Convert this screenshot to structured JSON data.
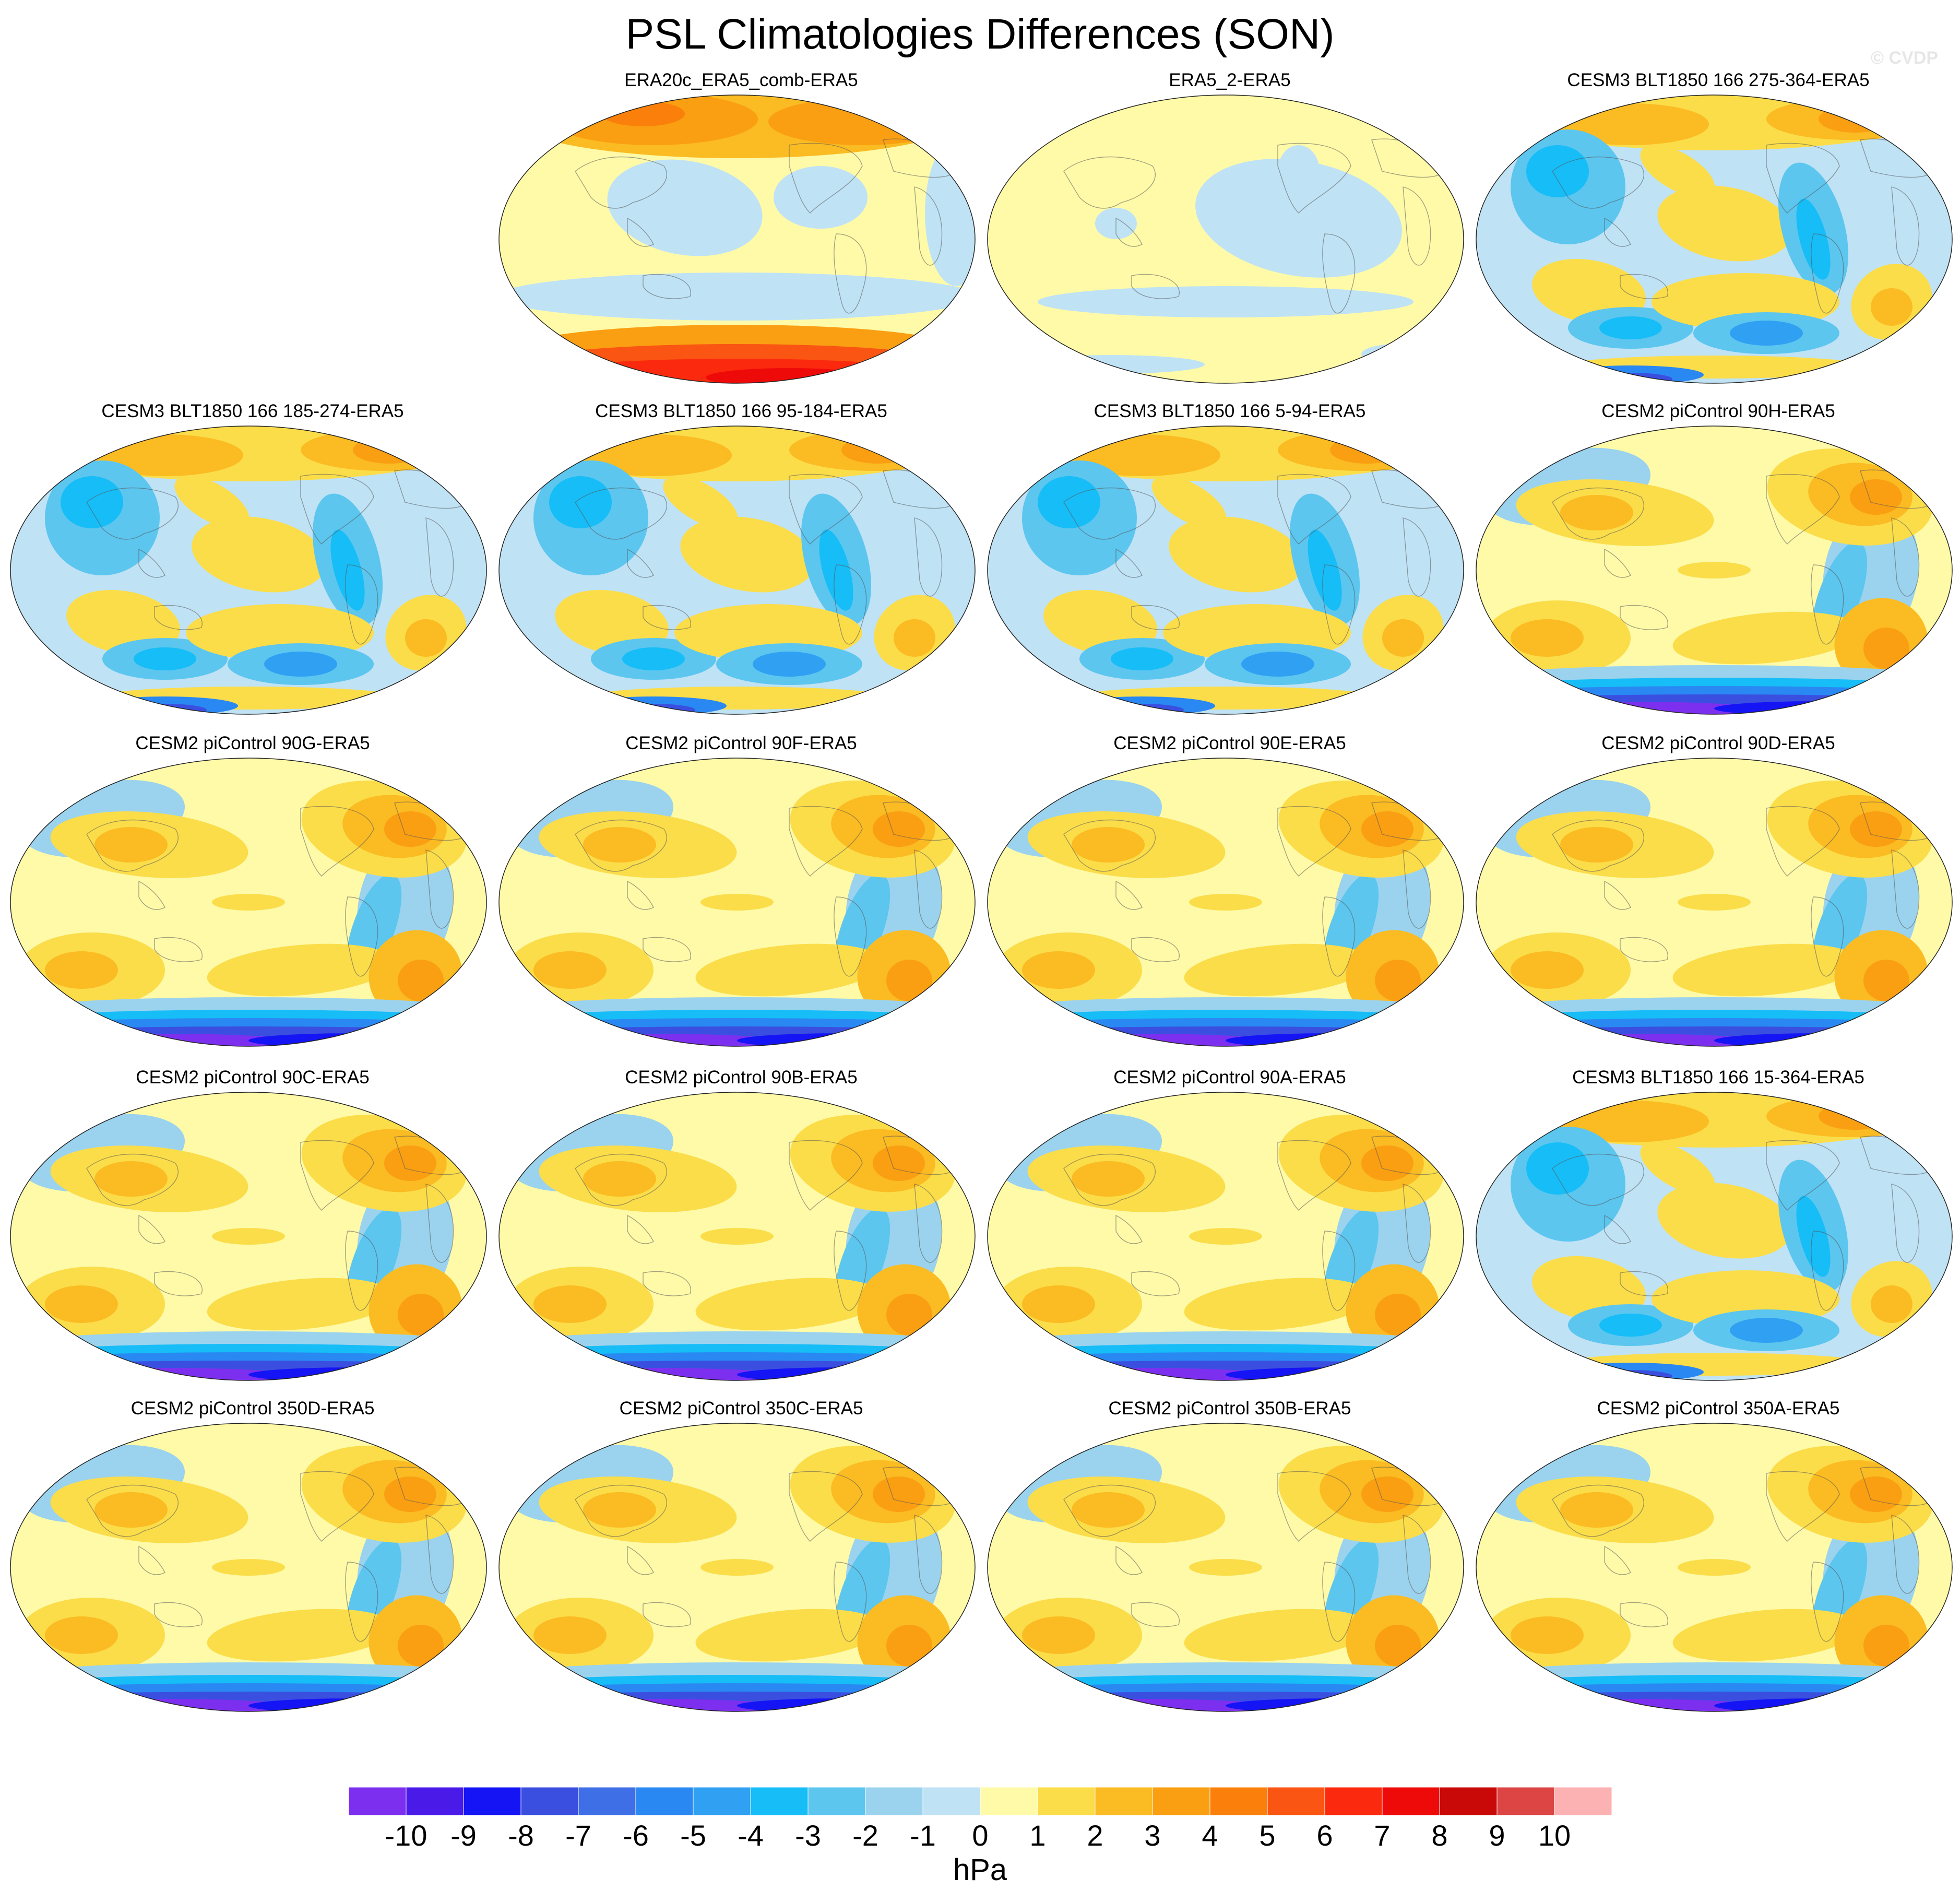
{
  "title": "PSL Climatologies Differences (SON)",
  "watermark": "© CVDP",
  "panels": [
    {
      "label": "ERA20c_ERA5_comb-ERA5",
      "pattern": "reanalysis_comb",
      "row": 0,
      "col": 1
    },
    {
      "label": "ERA5_2-ERA5",
      "pattern": "reanalysis_near_zero",
      "row": 0,
      "col": 2
    },
    {
      "label": "CESM3 BLT1850 166 275-364-ERA5",
      "pattern": "cesm3",
      "row": 0,
      "col": 3
    },
    {
      "label": "CESM3 BLT1850 166 185-274-ERA5",
      "pattern": "cesm3",
      "row": 1,
      "col": 0
    },
    {
      "label": "CESM3 BLT1850 166 95-184-ERA5",
      "pattern": "cesm3",
      "row": 1,
      "col": 1
    },
    {
      "label": "CESM3 BLT1850 166 5-94-ERA5",
      "pattern": "cesm3",
      "row": 1,
      "col": 2
    },
    {
      "label": "CESM2 piControl 90H-ERA5",
      "pattern": "cesm2",
      "row": 1,
      "col": 3
    },
    {
      "label": "CESM2 piControl 90G-ERA5",
      "pattern": "cesm2",
      "row": 2,
      "col": 0
    },
    {
      "label": "CESM2 piControl 90F-ERA5",
      "pattern": "cesm2",
      "row": 2,
      "col": 1
    },
    {
      "label": "CESM2 piControl 90E-ERA5",
      "pattern": "cesm2",
      "row": 2,
      "col": 2
    },
    {
      "label": "CESM2 piControl 90D-ERA5",
      "pattern": "cesm2",
      "row": 2,
      "col": 3
    },
    {
      "label": "CESM2 piControl 90C-ERA5",
      "pattern": "cesm2",
      "row": 3,
      "col": 0
    },
    {
      "label": "CESM2 piControl 90B-ERA5",
      "pattern": "cesm2",
      "row": 3,
      "col": 1
    },
    {
      "label": "CESM2 piControl 90A-ERA5",
      "pattern": "cesm2",
      "row": 3,
      "col": 2
    },
    {
      "label": "CESM3 BLT1850 166 15-364-ERA5",
      "pattern": "cesm3",
      "row": 3,
      "col": 3
    },
    {
      "label": "CESM2 piControl 350D-ERA5",
      "pattern": "cesm2",
      "row": 4,
      "col": 0
    },
    {
      "label": "CESM2 piControl 350C-ERA5",
      "pattern": "cesm2",
      "row": 4,
      "col": 1
    },
    {
      "label": "CESM2 piControl 350B-ERA5",
      "pattern": "cesm2",
      "row": 4,
      "col": 2
    },
    {
      "label": "CESM2 piControl 350A-ERA5",
      "pattern": "cesm2",
      "row": 4,
      "col": 3
    }
  ],
  "colorbar": {
    "unit": "hPa",
    "ticks": [
      "-10",
      "-9",
      "-8",
      "-7",
      "-6",
      "-5",
      "-4",
      "-3",
      "-2",
      "-1",
      "0",
      "1",
      "2",
      "3",
      "4",
      "5",
      "6",
      "7",
      "8",
      "9",
      "10"
    ],
    "colors": [
      "#7d2ff0",
      "#4a1ae8",
      "#1414f5",
      "#3a4fe0",
      "#3f6fe6",
      "#2a88f2",
      "#2fa0f2",
      "#16bdf7",
      "#5cc6ef",
      "#9bd3ee",
      "#bfe2f5",
      "#fefaa8",
      "#fbdd4a",
      "#fbbb22",
      "#fa9f12",
      "#fb800b",
      "#fa5512",
      "#fb2a0e",
      "#ef0a0a",
      "#c90808",
      "#dd4545",
      "#fcb2b2"
    ]
  }
}
